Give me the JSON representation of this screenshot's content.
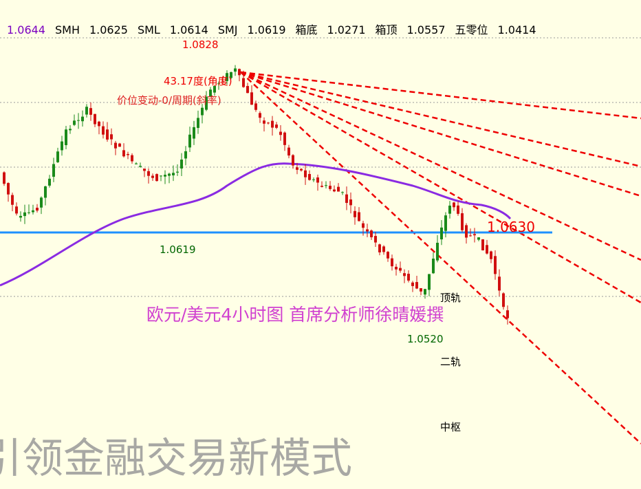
{
  "header": {
    "items": [
      {
        "value": "1.0644"
      },
      {
        "name": "SMH",
        "value": "1.0625"
      },
      {
        "name": "SML",
        "value": "1.0614"
      },
      {
        "name": "SMJ",
        "value": "1.0619"
      },
      {
        "name": "箱底",
        "value": "1.0271"
      },
      {
        "name": "箱顶",
        "value": "1.0557"
      },
      {
        "name": "五零位",
        "value": "1.0414"
      }
    ]
  },
  "annotations": {
    "high": "1.0828",
    "angle": "43.17度(角度)",
    "slope": "价位变动-0/周期(斜率)",
    "low1": "1.0619",
    "level": "1.0630",
    "low2": "1.0520",
    "top_rail": "顶轨",
    "second_rail": "二轨",
    "center": "中枢"
  },
  "title": "欧元/美元4小时图  首席分析师徐晴媛撰",
  "watermark": "引领金融交易新模式"
}
